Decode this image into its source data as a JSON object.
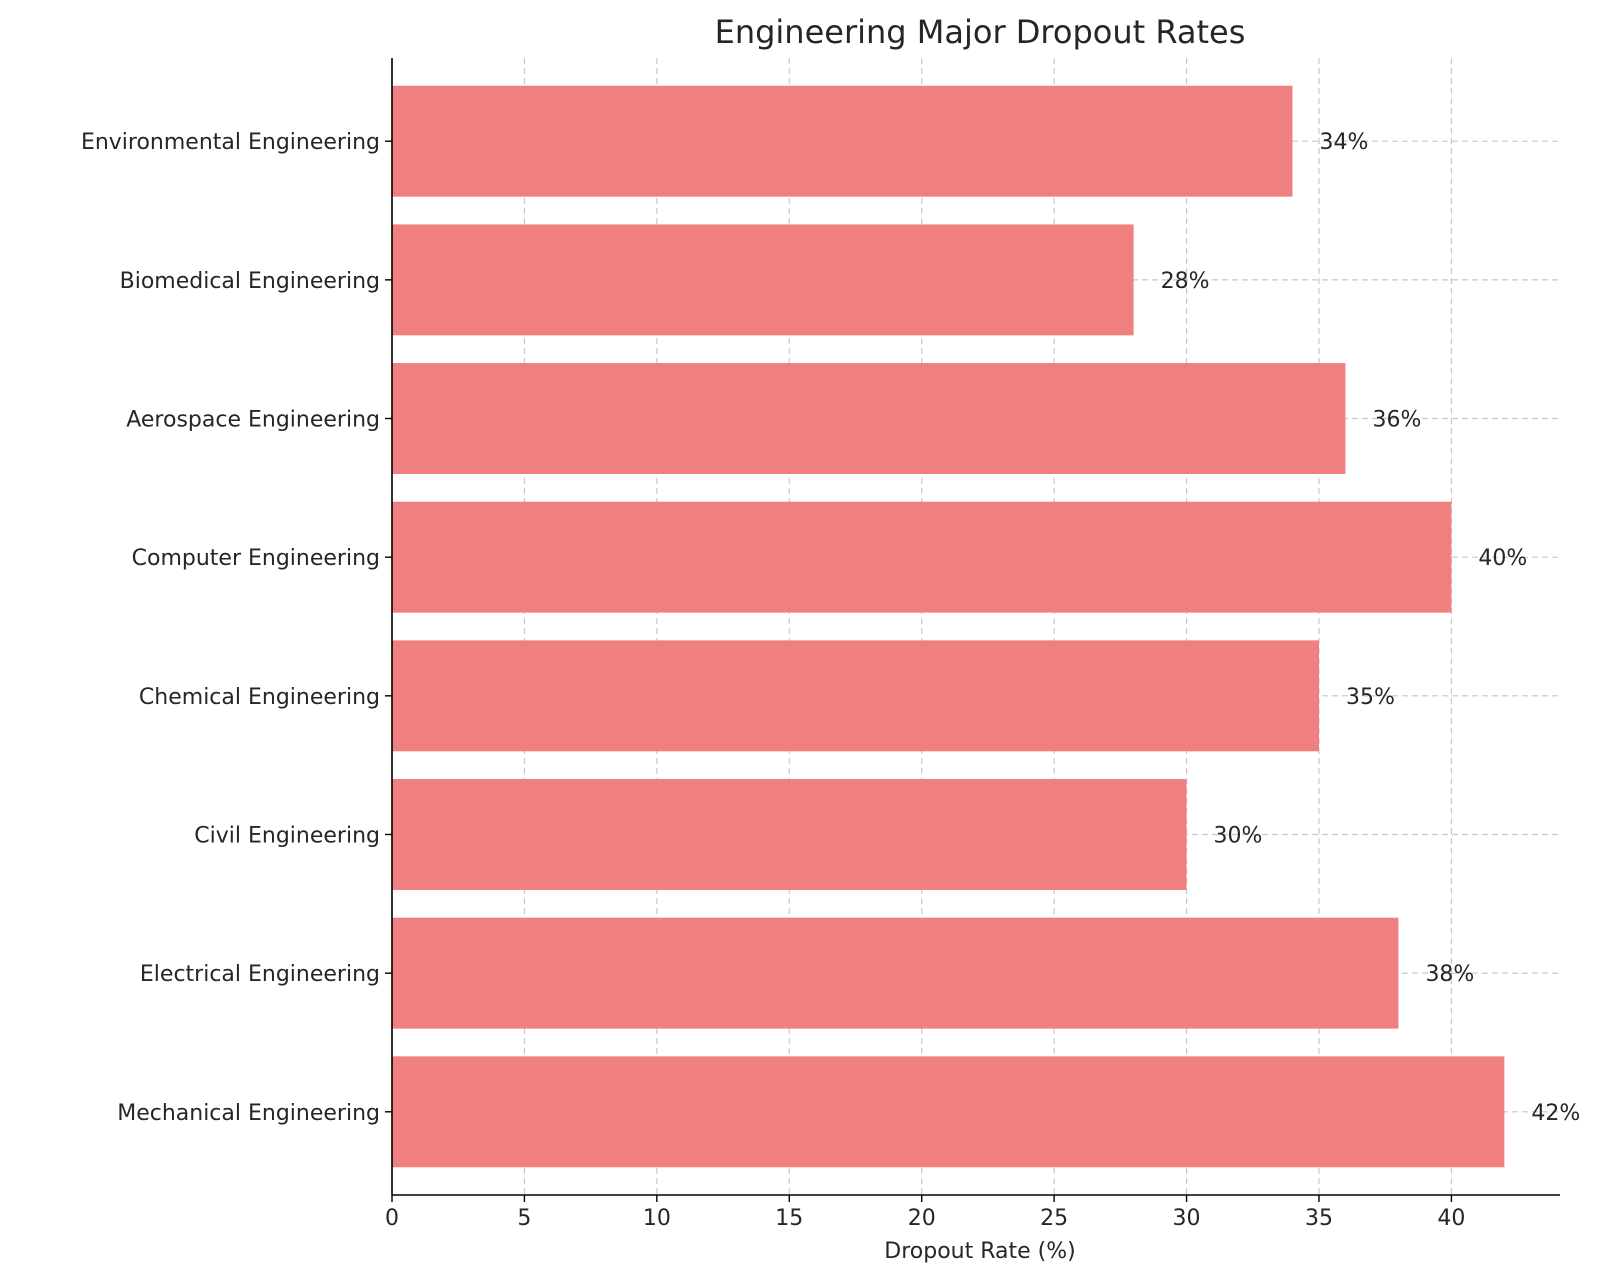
{
  "chart_data": {
    "type": "bar",
    "orientation": "horizontal",
    "title": "Engineering Major Dropout Rates",
    "xlabel": "Dropout Rate (%)",
    "ylabel": "",
    "categories": [
      "Mechanical Engineering",
      "Electrical Engineering",
      "Civil Engineering",
      "Chemical Engineering",
      "Computer Engineering",
      "Aerospace Engineering",
      "Biomedical Engineering",
      "Environmental Engineering"
    ],
    "values": [
      42,
      38,
      30,
      35,
      40,
      36,
      28,
      34
    ],
    "data_labels": [
      "42%",
      "38%",
      "30%",
      "35%",
      "40%",
      "36%",
      "28%",
      "34%"
    ],
    "xlim": [
      0,
      44.1
    ],
    "xticks": [
      0,
      5,
      10,
      15,
      20,
      25,
      30,
      35,
      40
    ],
    "grid": true,
    "bar_color": "#f08080"
  }
}
